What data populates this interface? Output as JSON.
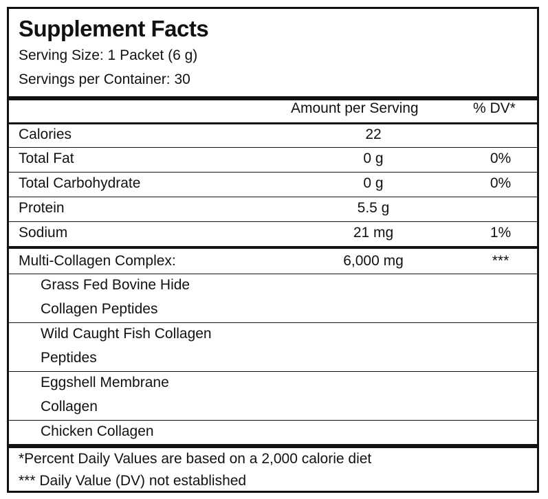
{
  "title": "Supplement Facts",
  "serving_size": "Serving Size: 1 Packet (6 g)",
  "servings_per_container": "Servings per Container: 30",
  "header": {
    "amount": "Amount per Serving",
    "dv": "% DV*"
  },
  "nutrients": [
    {
      "name": "Calories",
      "amount": "22",
      "dv": ""
    },
    {
      "name": "Total Fat",
      "amount": "0 g",
      "dv": "0%"
    },
    {
      "name": "Total Carbohydrate",
      "amount": "0 g",
      "dv": "0%"
    },
    {
      "name": "Protein",
      "amount": "5.5 g",
      "dv": ""
    },
    {
      "name": "Sodium",
      "amount": "21 mg",
      "dv": "1%"
    }
  ],
  "complex": {
    "name": "Multi-Collagen Complex:",
    "amount": "6,000 mg",
    "dv": "***"
  },
  "ingredients": [
    {
      "line1": "Grass Fed Bovine Hide",
      "line2": "Collagen Peptides"
    },
    {
      "line1": "Wild Caught Fish Collagen",
      "line2": "Peptides"
    },
    {
      "line1": "Eggshell Membrane",
      "line2": "Collagen"
    },
    {
      "line1": "Chicken Collagen",
      "line2": ""
    }
  ],
  "footnotes": {
    "dv_note": "*Percent Daily Values are based on a 2,000 calorie diet",
    "na_note": "*** Daily Value (DV) not established"
  }
}
